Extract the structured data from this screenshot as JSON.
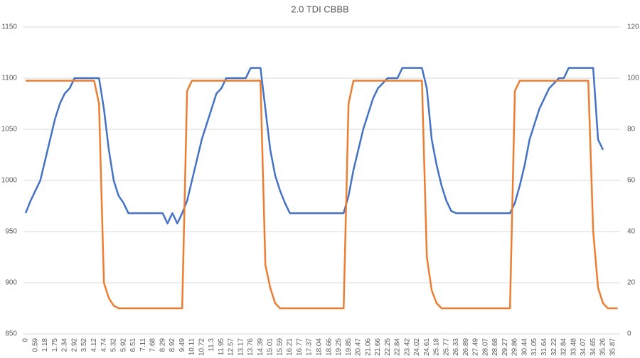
{
  "chart_data": {
    "type": "line",
    "title": "2.0 TDI CBBB",
    "categories": [
      "0",
      null,
      "0.59",
      null,
      "1.18",
      null,
      "1.75",
      null,
      "2.34",
      null,
      "2.92",
      null,
      "3.52",
      null,
      "4.12",
      null,
      "4.74",
      null,
      "5.32",
      null,
      "5.92",
      null,
      "6.51",
      null,
      "7.11",
      null,
      "7.68",
      null,
      "8.29",
      null,
      "8.92",
      null,
      "9.49",
      null,
      "10.11",
      null,
      "10.72",
      null,
      "11.3",
      null,
      "11.95",
      null,
      "12.57",
      null,
      "13.17",
      null,
      "13.76",
      null,
      "14.39",
      null,
      "15.01",
      null,
      "15.59",
      null,
      "16.21",
      null,
      "16.77",
      null,
      "17.37",
      null,
      "18.04",
      null,
      "18.66",
      null,
      "19.25",
      null,
      "19.85",
      null,
      "20.47",
      null,
      "21.06",
      null,
      "21.66",
      null,
      "22.25",
      null,
      "22.84",
      null,
      "23.42",
      null,
      "24.02",
      null,
      "24.61",
      null,
      "25.18",
      null,
      "25.77",
      null,
      "26.33",
      null,
      "26.89",
      null,
      "27.49",
      null,
      "28.07",
      null,
      "28.68",
      null,
      "29.27",
      null,
      "29.86",
      null,
      "30.44",
      null,
      "31.05",
      null,
      "31.64",
      null,
      "32.22",
      null,
      "32.84",
      null,
      "33.48",
      null,
      "34.07",
      null,
      "34.65",
      null,
      "35.26",
      null,
      "35.87",
      null
    ],
    "series": [
      {
        "color": "#4472c4",
        "values": [
          968,
          980,
          990,
          1000,
          1020,
          1040,
          1060,
          1075,
          1085,
          1090,
          1100,
          1100,
          1100,
          1100,
          1100,
          1100,
          1070,
          1030,
          1000,
          985,
          978,
          968,
          968,
          968,
          968,
          968,
          968,
          968,
          968,
          958,
          968,
          958,
          968,
          980,
          1000,
          1020,
          1040,
          1055,
          1070,
          1085,
          1090,
          1100,
          1100,
          1100,
          1100,
          1100,
          1110,
          1110,
          1110,
          1070,
          1030,
          1005,
          990,
          978,
          968,
          968,
          968,
          968,
          968,
          968,
          968,
          968,
          968,
          968,
          968,
          968,
          985,
          1010,
          1030,
          1050,
          1065,
          1080,
          1090,
          1095,
          1100,
          1100,
          1100,
          1110,
          1110,
          1110,
          1110,
          1110,
          1090,
          1040,
          1015,
          995,
          980,
          970,
          968,
          968,
          968,
          968,
          968,
          968,
          968,
          968,
          968,
          968,
          968,
          968,
          978,
          995,
          1015,
          1040,
          1055,
          1070,
          1080,
          1090,
          1095,
          1100,
          1100,
          1110,
          1110,
          1110,
          1110,
          1110,
          1110,
          1040,
          1030,
          null,
          null,
          null
        ]
      },
      {
        "color": "#ed7d31",
        "axis": "y2",
        "values": [
          99,
          99,
          99,
          99,
          99,
          99,
          99,
          99,
          99,
          99,
          99,
          99,
          99,
          99,
          99,
          90,
          20,
          14,
          11,
          10,
          10,
          10,
          10,
          10,
          10,
          10,
          10,
          10,
          10,
          10,
          10,
          10,
          10,
          95,
          99,
          99,
          99,
          99,
          99,
          99,
          99,
          99,
          99,
          99,
          99,
          99,
          99,
          99,
          99,
          27,
          18,
          12,
          10,
          10,
          10,
          10,
          10,
          10,
          10,
          10,
          10,
          10,
          10,
          10,
          10,
          10,
          90,
          99,
          99,
          99,
          99,
          99,
          99,
          99,
          99,
          99,
          99,
          99,
          99,
          99,
          99,
          99,
          30,
          17,
          12,
          10,
          10,
          10,
          10,
          10,
          10,
          10,
          10,
          10,
          10,
          10,
          10,
          10,
          10,
          10,
          95,
          99,
          99,
          99,
          99,
          99,
          99,
          99,
          99,
          99,
          99,
          99,
          99,
          99,
          99,
          99,
          40,
          18,
          12,
          10,
          10,
          10
        ]
      }
    ],
    "ylim": [
      850,
      1150
    ],
    "yticks": [
      850,
      900,
      950,
      1000,
      1050,
      1100,
      1150
    ],
    "y2lim": [
      0,
      120
    ],
    "y2ticks": [
      0,
      20,
      40,
      60,
      80,
      100,
      120
    ],
    "grid": true
  }
}
